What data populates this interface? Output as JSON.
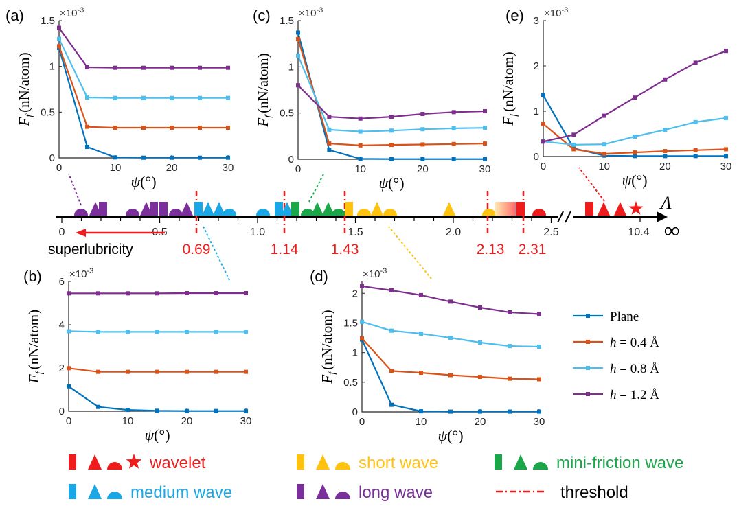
{
  "figure": {
    "x_ticks": [
      "0",
      "10",
      "20",
      "30"
    ],
    "exponent_label": "×10",
    "exponent_power": "-3",
    "ylabel_main": "F",
    "ylabel_sub": "f",
    "ylabel_units": "(nN/atom)",
    "xlabel_symbol": "ψ",
    "xlabel_units": "(°)"
  },
  "series_meta": [
    {
      "name": "Plane",
      "color": "#0072bd"
    },
    {
      "name": "h = 0.4 Å",
      "color": "#d95319"
    },
    {
      "name": "h = 0.8 Å",
      "color": "#4dbeee"
    },
    {
      "name": "h = 1.2 Å",
      "color": "#7e2f8e"
    }
  ],
  "legend": {
    "entries": [
      {
        "main": "Plane",
        "color": "#0072bd"
      },
      {
        "main": "h = 0.4",
        "unit": "Å",
        "color": "#d95319"
      },
      {
        "main": "h = 0.8",
        "unit": "Å",
        "color": "#4dbeee"
      },
      {
        "main": "h = 1.2",
        "unit": "Å",
        "color": "#7e2f8e"
      }
    ]
  },
  "chart_data": [
    {
      "panel": "(a)",
      "type": "line",
      "x": [
        0,
        5,
        10,
        15,
        20,
        25,
        30
      ],
      "ylim": [
        0,
        1.5
      ],
      "yticks": [
        0,
        0.5,
        1,
        1.5
      ],
      "ytick_labels": [
        "0",
        "0.5",
        "1",
        "1.5"
      ],
      "series": [
        {
          "values": [
            1.2,
            0.12,
            0.005,
            0.002,
            0.002,
            0.002,
            0.002
          ]
        },
        {
          "values": [
            1.22,
            0.34,
            0.33,
            0.33,
            0.33,
            0.33,
            0.33
          ]
        },
        {
          "values": [
            1.3,
            0.66,
            0.655,
            0.655,
            0.655,
            0.655,
            0.655
          ]
        },
        {
          "values": [
            1.42,
            0.99,
            0.985,
            0.985,
            0.985,
            0.985,
            0.985
          ]
        }
      ]
    },
    {
      "panel": "(b)",
      "type": "line",
      "x": [
        0,
        5,
        10,
        15,
        20,
        25,
        30
      ],
      "ylim": [
        0,
        6
      ],
      "yticks": [
        0,
        2,
        4,
        6
      ],
      "ytick_labels": [
        "0",
        "2",
        "4",
        "6"
      ],
      "series": [
        {
          "values": [
            1.15,
            0.2,
            0.06,
            0.02,
            0.01,
            0.01,
            0.01
          ]
        },
        {
          "values": [
            1.99,
            1.82,
            1.82,
            1.82,
            1.82,
            1.82,
            1.82
          ]
        },
        {
          "values": [
            3.7,
            3.67,
            3.67,
            3.67,
            3.67,
            3.67,
            3.67
          ]
        },
        {
          "values": [
            5.45,
            5.45,
            5.45,
            5.45,
            5.46,
            5.46,
            5.46
          ]
        }
      ]
    },
    {
      "panel": "(c)",
      "type": "line",
      "x": [
        0,
        5,
        10,
        15,
        20,
        25,
        30
      ],
      "ylim": [
        0,
        1.5
      ],
      "yticks": [
        0,
        0.5,
        1,
        1.5
      ],
      "ytick_labels": [
        "0",
        "0.5",
        "1",
        "1.5"
      ],
      "series": [
        {
          "values": [
            1.37,
            0.1,
            0.005,
            0.002,
            0.002,
            0.002,
            0.002
          ]
        },
        {
          "values": [
            1.3,
            0.17,
            0.15,
            0.155,
            0.16,
            0.165,
            0.17
          ]
        },
        {
          "values": [
            1.12,
            0.32,
            0.3,
            0.31,
            0.325,
            0.335,
            0.34
          ]
        },
        {
          "values": [
            0.8,
            0.46,
            0.44,
            0.46,
            0.49,
            0.51,
            0.52
          ]
        }
      ]
    },
    {
      "panel": "(d)",
      "type": "line",
      "x": [
        0,
        5,
        10,
        15,
        20,
        25,
        30
      ],
      "ylim": [
        0,
        2.2
      ],
      "yticks": [
        0,
        0.5,
        1,
        1.5,
        2
      ],
      "ytick_labels": [
        "0",
        "0.5",
        "1",
        "1.5",
        "2"
      ],
      "series": [
        {
          "values": [
            1.22,
            0.12,
            0.01,
            0.005,
            0.005,
            0.005,
            0.005
          ]
        },
        {
          "values": [
            1.24,
            0.69,
            0.66,
            0.62,
            0.59,
            0.56,
            0.55
          ]
        },
        {
          "values": [
            1.52,
            1.37,
            1.32,
            1.25,
            1.17,
            1.11,
            1.1
          ]
        },
        {
          "values": [
            2.12,
            2.05,
            1.97,
            1.86,
            1.76,
            1.68,
            1.65
          ]
        }
      ]
    },
    {
      "panel": "(e)",
      "type": "line",
      "x": [
        0,
        5,
        10,
        15,
        20,
        25,
        30
      ],
      "ylim": [
        0,
        3
      ],
      "yticks": [
        0,
        1,
        2,
        3
      ],
      "ytick_labels": [
        "0",
        "1",
        "2",
        "3"
      ],
      "series": [
        {
          "values": [
            1.35,
            0.18,
            0.02,
            0.01,
            0.01,
            0.01,
            0.01
          ]
        },
        {
          "values": [
            0.72,
            0.16,
            0.06,
            0.09,
            0.12,
            0.14,
            0.16
          ]
        },
        {
          "values": [
            0.33,
            0.26,
            0.27,
            0.44,
            0.59,
            0.76,
            0.85
          ]
        },
        {
          "values": [
            0.33,
            0.48,
            0.9,
            1.3,
            1.7,
            2.07,
            2.33
          ]
        }
      ]
    }
  ],
  "axis": {
    "tick_labels": [
      "0",
      "0.5",
      "1.0",
      "1.5",
      "2.0",
      "2.5",
      "10.4"
    ],
    "symbol": "Λ",
    "infinity": "∞",
    "superlubricity_label": "superlubricity",
    "thresholds": [
      "0.69",
      "1.14",
      "1.43",
      "2.13",
      "2.31"
    ]
  },
  "categories": [
    {
      "label": "wavelet",
      "color": "#ee1c1c"
    },
    {
      "label": "short wave",
      "color": "#ffc20e"
    },
    {
      "label": "mini-friction wave",
      "color": "#1ba64a"
    },
    {
      "label": "medium wave",
      "color": "#1aa7e6"
    },
    {
      "label": "long wave",
      "color": "#7a2f9a"
    },
    {
      "label": "threshold",
      "color": "#ee1c1c"
    }
  ]
}
